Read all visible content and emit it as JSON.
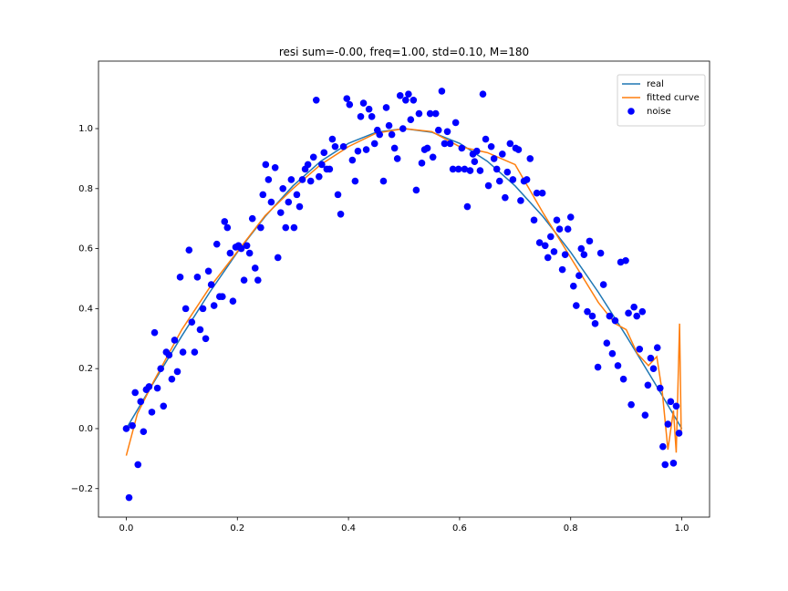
{
  "chart_data": {
    "type": "scatter",
    "title": "resi sum=-0.00, freq=1.00, std=0.10, M=180",
    "xlim": [
      -0.05,
      1.05
    ],
    "ylim": [
      -0.295,
      1.225
    ],
    "xticks": [
      {
        "value": 0,
        "label": "0.0"
      },
      {
        "value": 0.2,
        "label": "0.2"
      },
      {
        "value": 0.4,
        "label": "0.4"
      },
      {
        "value": 0.6,
        "label": "0.6"
      },
      {
        "value": 0.8,
        "label": "0.8"
      },
      {
        "value": 1,
        "label": "1.0"
      }
    ],
    "yticks": [
      {
        "value": -0.2,
        "label": "−0.2"
      },
      {
        "value": 0,
        "label": "0.0"
      },
      {
        "value": 0.2,
        "label": "0.2"
      },
      {
        "value": 0.4,
        "label": "0.4"
      },
      {
        "value": 0.6,
        "label": "0.6"
      },
      {
        "value": 0.8,
        "label": "0.8"
      },
      {
        "value": 1,
        "label": "1.0"
      }
    ],
    "legend": "upper right",
    "series": [
      {
        "name": "real",
        "kind": "line",
        "color": "#1f77b4",
        "x": [
          0,
          0.05,
          0.1,
          0.15,
          0.2,
          0.25,
          0.3,
          0.35,
          0.4,
          0.45,
          0.5,
          0.55,
          0.6,
          0.65,
          0.7,
          0.75,
          0.8,
          0.85,
          0.9,
          0.95,
          1
        ],
        "values": [
          0,
          0.156,
          0.309,
          0.454,
          0.588,
          0.707,
          0.809,
          0.891,
          0.951,
          0.988,
          1,
          0.988,
          0.951,
          0.891,
          0.809,
          0.707,
          0.588,
          0.454,
          0.309,
          0.156,
          0
        ]
      },
      {
        "name": "fitted curve",
        "kind": "line",
        "color": "#ff7f0e",
        "x": [
          0,
          0.02,
          0.05,
          0.1,
          0.15,
          0.2,
          0.25,
          0.3,
          0.35,
          0.4,
          0.45,
          0.5,
          0.55,
          0.6,
          0.65,
          0.7,
          0.75,
          0.8,
          0.85,
          0.88,
          0.9,
          0.92,
          0.94,
          0.955,
          0.965,
          0.975,
          0.985,
          0.99,
          0.996,
          0.999
        ],
        "values": [
          -0.09,
          0.05,
          0.16,
          0.33,
          0.47,
          0.59,
          0.71,
          0.8,
          0.88,
          0.94,
          0.985,
          1.0,
          0.99,
          0.94,
          0.92,
          0.88,
          0.72,
          0.57,
          0.42,
          0.35,
          0.33,
          0.25,
          0.21,
          0.24,
          0.12,
          -0.07,
          0.06,
          -0.08,
          0.35,
          -0.02
        ]
      },
      {
        "name": "noise",
        "kind": "points",
        "color": "#0000ff",
        "x": [
          0,
          0.005,
          0.011,
          0.016,
          0.021,
          0.026,
          0.031,
          0.036,
          0.041,
          0.046,
          0.051,
          0.056,
          0.062,
          0.067,
          0.072,
          0.077,
          0.082,
          0.087,
          0.092,
          0.097,
          0.102,
          0.107,
          0.113,
          0.118,
          0.123,
          0.128,
          0.133,
          0.138,
          0.143,
          0.148,
          0.153,
          0.158,
          0.163,
          0.168,
          0.173,
          0.177,
          0.182,
          0.187,
          0.192,
          0.197,
          0.202,
          0.207,
          0.212,
          0.217,
          0.222,
          0.227,
          0.232,
          0.237,
          0.242,
          0.246,
          0.251,
          0.256,
          0.261,
          0.268,
          0.273,
          0.278,
          0.282,
          0.287,
          0.292,
          0.297,
          0.302,
          0.307,
          0.312,
          0.317,
          0.322,
          0.327,
          0.332,
          0.337,
          0.342,
          0.347,
          0.352,
          0.356,
          0.361,
          0.366,
          0.371,
          0.376,
          0.381,
          0.386,
          0.391,
          0.397,
          0.402,
          0.407,
          0.412,
          0.417,
          0.422,
          0.427,
          0.432,
          0.437,
          0.442,
          0.447,
          0.452,
          0.456,
          0.463,
          0.468,
          0.473,
          0.478,
          0.483,
          0.488,
          0.493,
          0.498,
          0.503,
          0.508,
          0.512,
          0.517,
          0.522,
          0.527,
          0.532,
          0.537,
          0.542,
          0.547,
          0.552,
          0.557,
          0.562,
          0.568,
          0.573,
          0.578,
          0.583,
          0.588,
          0.593,
          0.598,
          0.604,
          0.609,
          0.614,
          0.619,
          0.624,
          0.627,
          0.631,
          0.637,
          0.642,
          0.647,
          0.652,
          0.657,
          0.662,
          0.667,
          0.672,
          0.677,
          0.682,
          0.686,
          0.691,
          0.696,
          0.701,
          0.706,
          0.71,
          0.716,
          0.721,
          0.727,
          0.734,
          0.739,
          0.744,
          0.749,
          0.754,
          0.759,
          0.764,
          0.77,
          0.775,
          0.78,
          0.785,
          0.79,
          0.795,
          0.8,
          0.805,
          0.81,
          0.815,
          0.819,
          0.824,
          0.83,
          0.834,
          0.839,
          0.844,
          0.849,
          0.854,
          0.859,
          0.865,
          0.87,
          0.875,
          0.88,
          0.885,
          0.89,
          0.895,
          0.899,
          0.904,
          0.909,
          0.914,
          0.919,
          0.924,
          0.929,
          0.934,
          0.939,
          0.944,
          0.949,
          0.956,
          0.961,
          0.966,
          0.97,
          0.975,
          0.98,
          0.985,
          0.99,
          0.995
        ],
        "values": [
          0,
          -0.23,
          0.01,
          0.12,
          -0.12,
          0.09,
          -0.01,
          0.13,
          0.14,
          0.055,
          0.32,
          0.135,
          0.2,
          0.075,
          0.255,
          0.245,
          0.165,
          0.295,
          0.19,
          0.505,
          0.255,
          0.4,
          0.595,
          0.355,
          0.255,
          0.505,
          0.33,
          0.4,
          0.3,
          0.525,
          0.48,
          0.41,
          0.615,
          0.44,
          0.44,
          0.69,
          0.67,
          0.585,
          0.425,
          0.605,
          0.61,
          0.6,
          0.495,
          0.61,
          0.585,
          0.7,
          0.535,
          0.495,
          0.67,
          0.78,
          0.88,
          0.83,
          0.755,
          0.87,
          0.57,
          0.72,
          0.8,
          0.67,
          0.755,
          0.83,
          0.67,
          0.78,
          0.74,
          0.83,
          0.865,
          0.88,
          0.825,
          0.905,
          1.095,
          0.84,
          0.88,
          0.92,
          0.865,
          0.865,
          0.965,
          0.94,
          0.78,
          0.715,
          0.94,
          1.1,
          1.08,
          0.895,
          0.825,
          0.925,
          1.04,
          1.085,
          0.93,
          1.065,
          1.04,
          0.95,
          0.995,
          0.98,
          0.825,
          1.07,
          1.01,
          0.98,
          0.935,
          0.9,
          1.11,
          1.0,
          1.095,
          1.115,
          1.03,
          1.095,
          0.795,
          1.05,
          0.885,
          0.93,
          0.935,
          1.05,
          0.905,
          1.05,
          0.995,
          1.125,
          0.95,
          0.99,
          0.95,
          0.865,
          1.02,
          0.865,
          0.935,
          0.865,
          0.74,
          0.86,
          0.915,
          0.89,
          0.925,
          0.86,
          1.115,
          0.965,
          0.81,
          0.94,
          0.9,
          0.865,
          0.825,
          0.915,
          0.77,
          0.855,
          0.95,
          0.83,
          0.935,
          0.93,
          0.76,
          0.825,
          0.83,
          0.9,
          0.695,
          0.785,
          0.62,
          0.785,
          0.61,
          0.57,
          0.64,
          0.59,
          0.695,
          0.665,
          0.53,
          0.58,
          0.665,
          0.705,
          0.475,
          0.41,
          0.51,
          0.6,
          0.58,
          0.39,
          0.625,
          0.375,
          0.35,
          0.205,
          0.585,
          0.48,
          0.285,
          0.375,
          0.25,
          0.36,
          0.21,
          0.555,
          0.165,
          0.56,
          0.385,
          0.08,
          0.405,
          0.375,
          0.265,
          0.39,
          0.045,
          0.145,
          0.235,
          0.2,
          0.27,
          0.135,
          -0.06,
          -0.12,
          0.015,
          0.09,
          -0.115,
          0.075,
          -0.015
        ]
      }
    ]
  }
}
